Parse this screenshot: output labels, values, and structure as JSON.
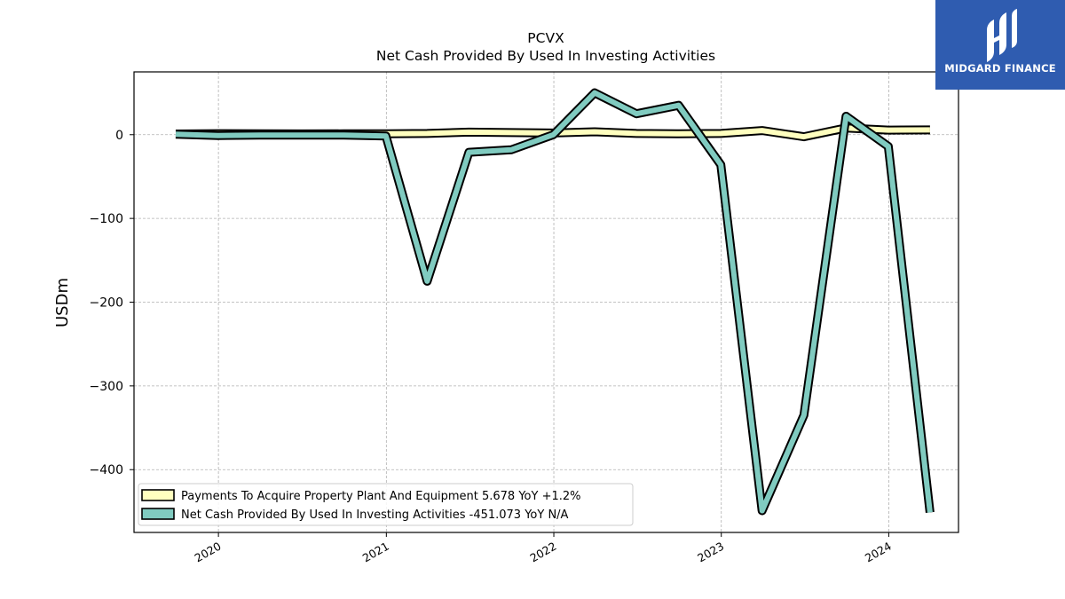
{
  "chart_data": {
    "type": "line",
    "title": "PCVX",
    "subtitle": "Net Cash Provided By Used In Investing Activities",
    "xlabel": "",
    "ylabel": "USDm",
    "xlim": [
      "2019-07-01",
      "2024-06-01"
    ],
    "ylim": [
      -475,
      75
    ],
    "x_ticks": [
      "2020",
      "2021",
      "2022",
      "2023",
      "2024"
    ],
    "y_ticks": [
      0,
      -100,
      -200,
      -300,
      -400
    ],
    "y_tick_labels": [
      "0",
      "−100",
      "−200",
      "−300",
      "−400"
    ],
    "grid": true,
    "legend_position": "lower-left",
    "series": [
      {
        "name": "Payments To Acquire Property Plant And Equipment",
        "legend_label": "Payments To Acquire Property Plant And Equipment  5.678 YoY +1.2%",
        "color": "#ffffbf",
        "x": [
          "2019-09-30",
          "2019-12-31",
          "2020-03-31",
          "2020-06-30",
          "2020-09-30",
          "2020-12-31",
          "2021-03-31",
          "2021-06-30",
          "2021-09-30",
          "2021-12-31",
          "2022-03-31",
          "2022-06-30",
          "2022-09-30",
          "2022-12-31",
          "2023-03-31",
          "2023-06-30",
          "2023-09-30",
          "2023-12-31",
          "2024-03-31"
        ],
        "y": [
          0.8,
          1.2,
          1.0,
          0.9,
          1.0,
          1.0,
          1.5,
          3.0,
          2.5,
          2.0,
          3.5,
          1.5,
          1.0,
          1.5,
          5.0,
          -2.5,
          8.0,
          5.5,
          5.7
        ]
      },
      {
        "name": "Net Cash Provided By Used In Investing Activities",
        "legend_label": "Net Cash Provided By Used In Investing Activities  -451.073 YoY N/A",
        "color": "#80cbc0",
        "x": [
          "2019-09-30",
          "2019-12-31",
          "2020-03-31",
          "2020-06-30",
          "2020-09-30",
          "2020-12-31",
          "2021-03-31",
          "2021-06-30",
          "2021-09-30",
          "2021-12-31",
          "2022-03-31",
          "2022-06-30",
          "2022-09-30",
          "2022-12-31",
          "2023-03-31",
          "2023-06-30",
          "2023-09-30",
          "2023-12-31",
          "2024-03-31"
        ],
        "y": [
          0.5,
          -1.0,
          -0.5,
          -0.5,
          -0.5,
          -1.5,
          -175.0,
          -21.0,
          -18.0,
          0.0,
          50.0,
          25.0,
          35.0,
          -36.0,
          -449.0,
          -335.0,
          22.0,
          -14.0,
          -451.073
        ]
      }
    ]
  },
  "logo": {
    "text": "MIDGARD FINANCE",
    "color": "#2f5cb0"
  }
}
